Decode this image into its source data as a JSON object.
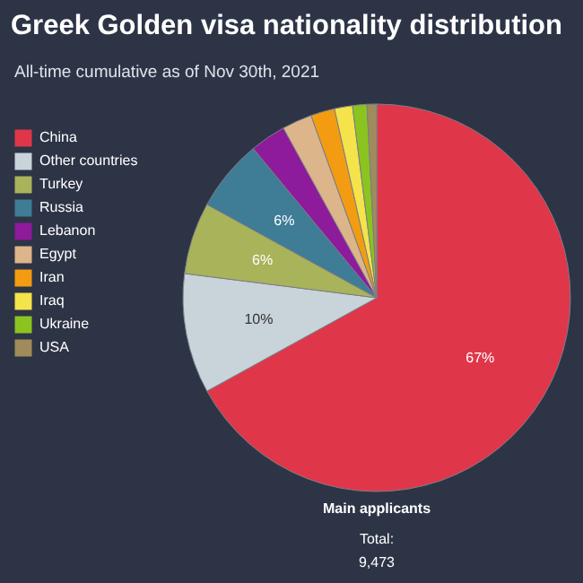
{
  "chart_data": {
    "type": "pie",
    "title": "Greek Golden visa nationality distribution",
    "subtitle": "All-time cumulative as of Nov 30th, 2021",
    "categories": [
      "China",
      "Other countries",
      "Turkey",
      "Russia",
      "Lebanon",
      "Egypt",
      "Iran",
      "Iraq",
      "Ukraine",
      "USA"
    ],
    "values": [
      67,
      10,
      6,
      6,
      3,
      2.5,
      2,
      1.5,
      1.2,
      0.8
    ],
    "value_labels": [
      "67%",
      "10%",
      "6%",
      "6%",
      null,
      null,
      null,
      null,
      null,
      null
    ],
    "colors": [
      "#e0364a",
      "#c9d3da",
      "#a9b35a",
      "#3f7c96",
      "#8e1a9c",
      "#dcb58a",
      "#f39c12",
      "#f4e34a",
      "#8cc41f",
      "#a08c5a"
    ],
    "legend": "left",
    "annotations": [
      "Main applicants",
      "Total:",
      "9,473"
    ]
  }
}
